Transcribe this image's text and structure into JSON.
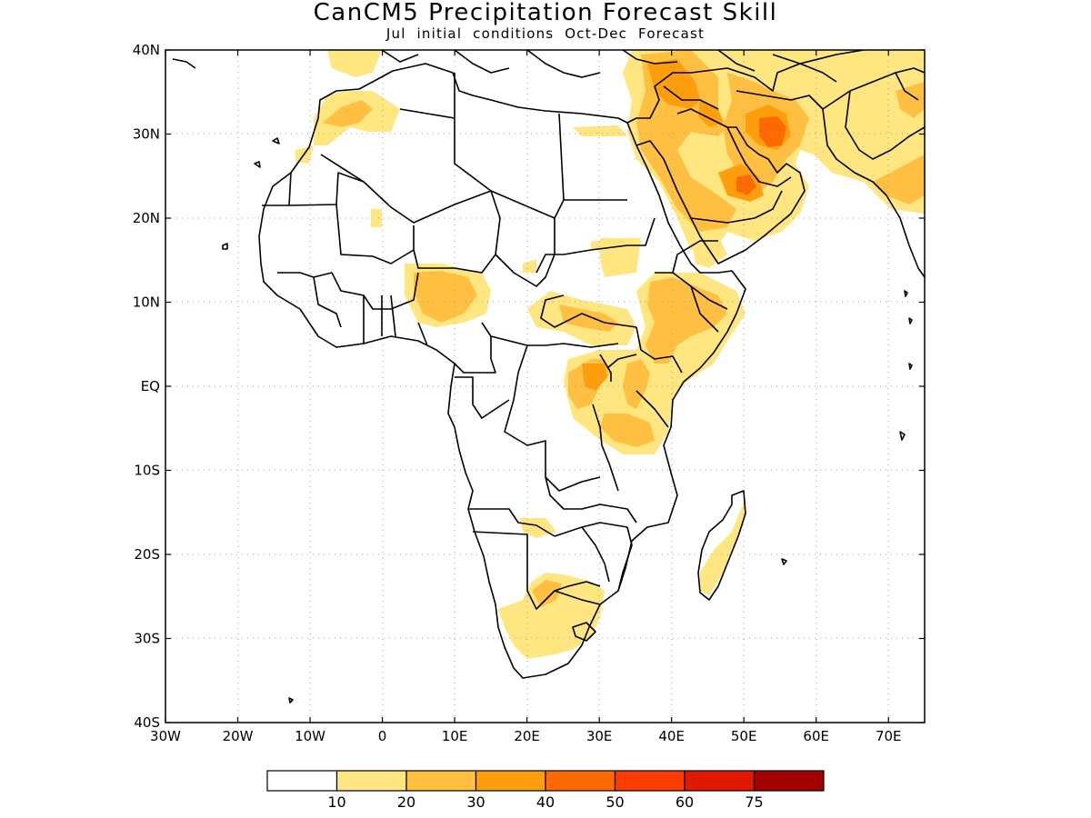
{
  "title": "CanCM5 Precipitation Forecast Skill",
  "subtitle": "Jul initial conditions  Oct-Dec Forecast",
  "axes": {
    "lon_ticks": [
      "30W",
      "20W",
      "10W",
      "0",
      "10E",
      "20E",
      "30E",
      "40E",
      "50E",
      "60E",
      "70E"
    ],
    "lat_ticks": [
      "40N",
      "30N",
      "20N",
      "10N",
      "EQ",
      "10S",
      "20S",
      "30S",
      "40S"
    ]
  },
  "colors": {
    "c1": "#ffffff",
    "c2": "#ffe680",
    "c3": "#ffbf40",
    "c4": "#ff9e0d",
    "c5": "#ff6a00",
    "c6": "#ff3d00",
    "c7": "#e01a00",
    "c8": "#a50000"
  },
  "colorbar": {
    "labels": [
      "10",
      "20",
      "30",
      "40",
      "50",
      "60",
      "75"
    ]
  }
}
